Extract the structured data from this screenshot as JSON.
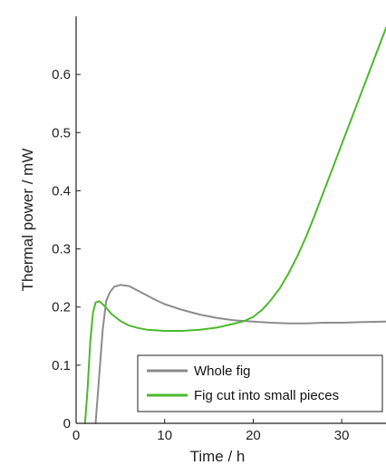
{
  "chart_data": {
    "type": "line",
    "title": "",
    "xlabel": "Time / h",
    "ylabel": "Thermal power / mW",
    "xlim": [
      0,
      35
    ],
    "ylim": [
      0,
      0.7
    ],
    "grid": false,
    "legend_position": "bottom-right",
    "x_ticks": [
      {
        "value": 0,
        "label": "0"
      },
      {
        "value": 10,
        "label": "10"
      },
      {
        "value": 20,
        "label": "20"
      },
      {
        "value": 30,
        "label": "30"
      }
    ],
    "y_ticks": [
      {
        "value": 0,
        "label": "0"
      },
      {
        "value": 0.1,
        "label": "0.1"
      },
      {
        "value": 0.2,
        "label": "0.2"
      },
      {
        "value": 0.3,
        "label": "0.3"
      },
      {
        "value": 0.4,
        "label": "0.4"
      },
      {
        "value": 0.5,
        "label": "0.5"
      },
      {
        "value": 0.6,
        "label": "0.6"
      }
    ],
    "series": [
      {
        "name": "Whole fig",
        "color": "#8c8c8c",
        "points": [
          [
            2.2,
            0.0
          ],
          [
            2.6,
            0.08
          ],
          [
            3.0,
            0.16
          ],
          [
            3.4,
            0.21
          ],
          [
            3.8,
            0.225
          ],
          [
            4.3,
            0.235
          ],
          [
            5.0,
            0.238
          ],
          [
            6.0,
            0.236
          ],
          [
            7.0,
            0.228
          ],
          [
            8.0,
            0.22
          ],
          [
            9.0,
            0.212
          ],
          [
            10.0,
            0.205
          ],
          [
            12.0,
            0.195
          ],
          [
            14.0,
            0.187
          ],
          [
            16.0,
            0.181
          ],
          [
            18.0,
            0.177
          ],
          [
            20.0,
            0.175
          ],
          [
            22.0,
            0.173
          ],
          [
            24.0,
            0.172
          ],
          [
            26.0,
            0.172
          ],
          [
            28.0,
            0.173
          ],
          [
            30.0,
            0.173
          ],
          [
            32.0,
            0.174
          ],
          [
            35.0,
            0.175
          ]
        ]
      },
      {
        "name": "Fig cut into small pieces",
        "color": "#4db82e",
        "points": [
          [
            1.0,
            0.0
          ],
          [
            1.3,
            0.06
          ],
          [
            1.6,
            0.14
          ],
          [
            1.9,
            0.19
          ],
          [
            2.2,
            0.208
          ],
          [
            2.6,
            0.21
          ],
          [
            3.2,
            0.202
          ],
          [
            4.0,
            0.188
          ],
          [
            5.0,
            0.176
          ],
          [
            6.0,
            0.168
          ],
          [
            7.0,
            0.164
          ],
          [
            8.0,
            0.161
          ],
          [
            10.0,
            0.159
          ],
          [
            12.0,
            0.159
          ],
          [
            14.0,
            0.161
          ],
          [
            16.0,
            0.165
          ],
          [
            18.0,
            0.172
          ],
          [
            19.0,
            0.176
          ],
          [
            20.0,
            0.183
          ],
          [
            21.0,
            0.195
          ],
          [
            22.0,
            0.212
          ],
          [
            23.0,
            0.232
          ],
          [
            24.0,
            0.258
          ],
          [
            25.0,
            0.288
          ],
          [
            26.0,
            0.322
          ],
          [
            27.0,
            0.36
          ],
          [
            28.0,
            0.4
          ],
          [
            29.0,
            0.44
          ],
          [
            30.0,
            0.48
          ],
          [
            31.0,
            0.52
          ],
          [
            32.0,
            0.56
          ],
          [
            33.0,
            0.6
          ],
          [
            34.0,
            0.64
          ],
          [
            35.0,
            0.68
          ]
        ]
      }
    ]
  }
}
